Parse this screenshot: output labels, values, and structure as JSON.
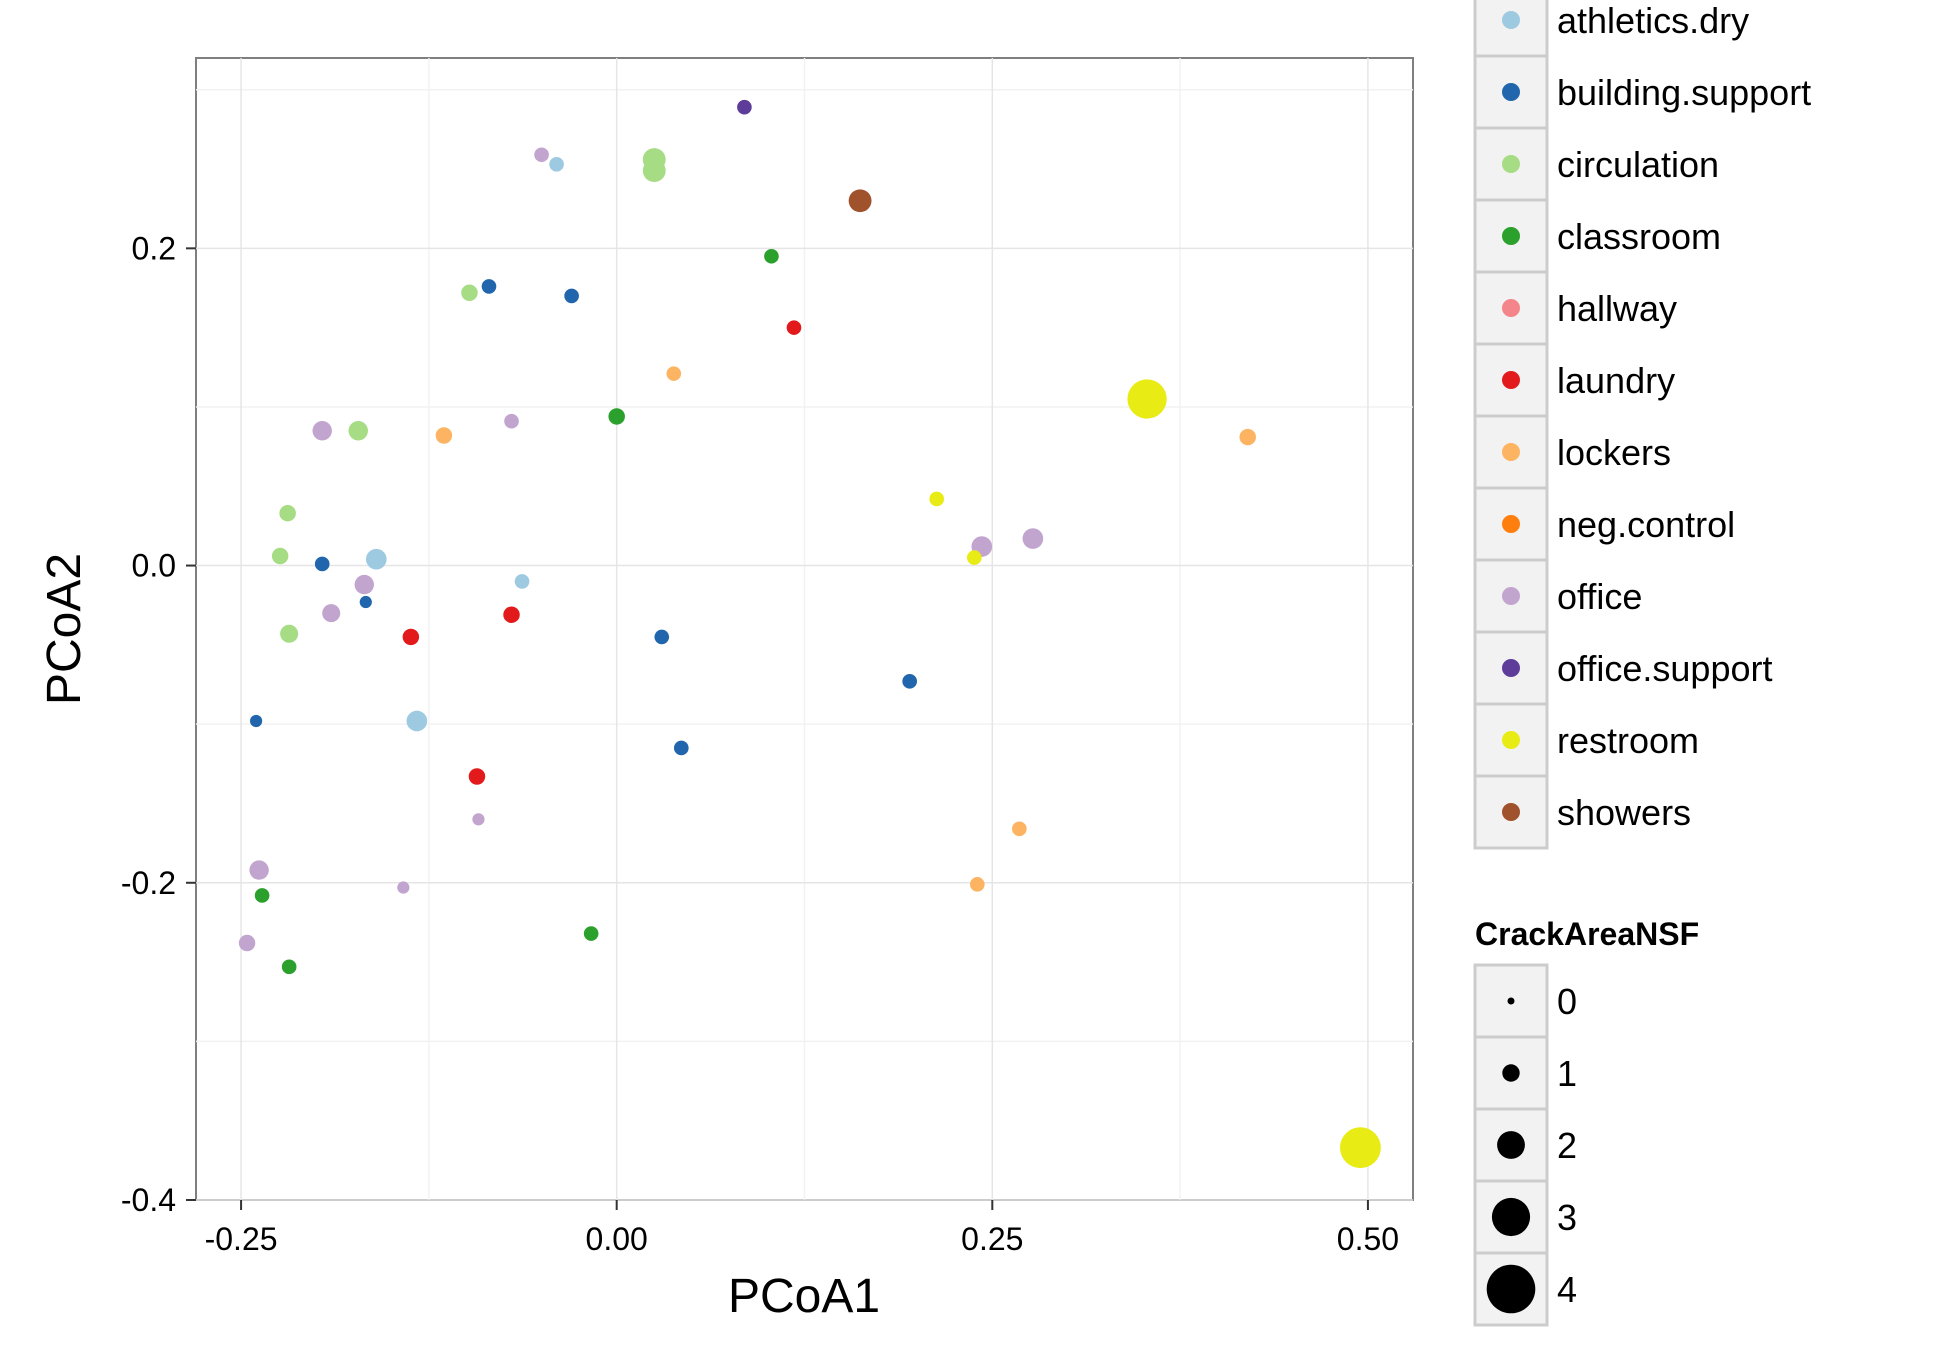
{
  "chart_data": {
    "type": "scatter",
    "title": "",
    "xlabel": "PCoA1",
    "ylabel": "PCoA2",
    "xlim": [
      -0.28,
      0.53
    ],
    "ylim": [
      -0.4,
      0.32
    ],
    "xticks": [
      {
        "value": -0.25,
        "label": "-0.25"
      },
      {
        "value": 0.0,
        "label": "0.00"
      },
      {
        "value": 0.25,
        "label": "0.25"
      },
      {
        "value": 0.5,
        "label": "0.50"
      }
    ],
    "yticks": [
      {
        "value": -0.4,
        "label": "-0.4"
      },
      {
        "value": -0.2,
        "label": "-0.2"
      },
      {
        "value": 0.0,
        "label": "0.0"
      },
      {
        "value": 0.2,
        "label": "0.2"
      }
    ],
    "grid": true,
    "legend_position": "right",
    "color_legend": {
      "title": "",
      "entries": [
        {
          "label": "athletics.dry",
          "color": "#9ecae1"
        },
        {
          "label": "building.support",
          "color": "#2166ac"
        },
        {
          "label": "circulation",
          "color": "#a6dc84"
        },
        {
          "label": "classroom",
          "color": "#2ca02c"
        },
        {
          "label": "hallway",
          "color": "#f4858a"
        },
        {
          "label": "laundry",
          "color": "#e31a1c"
        },
        {
          "label": "lockers",
          "color": "#fdb462"
        },
        {
          "label": "neg.control",
          "color": "#ff7f0e"
        },
        {
          "label": "office",
          "color": "#c2a5cf"
        },
        {
          "label": "office.support",
          "color": "#5e3c99"
        },
        {
          "label": "restroom",
          "color": "#e8eb14"
        },
        {
          "label": "showers",
          "color": "#a0522d"
        }
      ]
    },
    "size_legend": {
      "title": "CrackAreaNSF",
      "entries": [
        {
          "label": "0",
          "value": 0
        },
        {
          "label": "1",
          "value": 1
        },
        {
          "label": "2",
          "value": 2
        },
        {
          "label": "3",
          "value": 3
        },
        {
          "label": "4",
          "value": 4
        }
      ]
    },
    "points": [
      {
        "x": 0.085,
        "y": 0.289,
        "group": "office.support",
        "size": 0.2
      },
      {
        "x": -0.05,
        "y": 0.259,
        "group": "office",
        "size": 0.2
      },
      {
        "x": -0.04,
        "y": 0.253,
        "group": "athletics.dry",
        "size": 0.2
      },
      {
        "x": 0.025,
        "y": 0.256,
        "group": "circulation",
        "size": 0.8
      },
      {
        "x": 0.025,
        "y": 0.249,
        "group": "circulation",
        "size": 0.8
      },
      {
        "x": 0.162,
        "y": 0.23,
        "group": "showers",
        "size": 0.8
      },
      {
        "x": 0.103,
        "y": 0.195,
        "group": "classroom",
        "size": 0.2
      },
      {
        "x": -0.085,
        "y": 0.176,
        "group": "building.support",
        "size": 0.2
      },
      {
        "x": -0.098,
        "y": 0.172,
        "group": "circulation",
        "size": 0.3
      },
      {
        "x": -0.03,
        "y": 0.17,
        "group": "building.support",
        "size": 0.2
      },
      {
        "x": 0.118,
        "y": 0.15,
        "group": "laundry",
        "size": 0.2
      },
      {
        "x": 0.038,
        "y": 0.121,
        "group": "lockers",
        "size": 0.2
      },
      {
        "x": 0.353,
        "y": 0.105,
        "group": "restroom",
        "size": 3.2
      },
      {
        "x": 0.42,
        "y": 0.081,
        "group": "lockers",
        "size": 0.3
      },
      {
        "x": 0.0,
        "y": 0.094,
        "group": "classroom",
        "size": 0.3
      },
      {
        "x": -0.07,
        "y": 0.091,
        "group": "office",
        "size": 0.2
      },
      {
        "x": -0.196,
        "y": 0.085,
        "group": "office",
        "size": 0.5
      },
      {
        "x": -0.172,
        "y": 0.085,
        "group": "circulation",
        "size": 0.5
      },
      {
        "x": -0.115,
        "y": 0.082,
        "group": "lockers",
        "size": 0.3
      },
      {
        "x": 0.213,
        "y": 0.042,
        "group": "restroom",
        "size": 0.2
      },
      {
        "x": -0.219,
        "y": 0.033,
        "group": "circulation",
        "size": 0.3
      },
      {
        "x": 0.277,
        "y": 0.017,
        "group": "office",
        "size": 0.6
      },
      {
        "x": 0.243,
        "y": 0.012,
        "group": "office",
        "size": 0.6
      },
      {
        "x": 0.238,
        "y": 0.005,
        "group": "restroom",
        "size": 0.2
      },
      {
        "x": -0.224,
        "y": 0.006,
        "group": "circulation",
        "size": 0.3
      },
      {
        "x": -0.16,
        "y": 0.004,
        "group": "athletics.dry",
        "size": 0.6
      },
      {
        "x": -0.196,
        "y": 0.001,
        "group": "building.support",
        "size": 0.2
      },
      {
        "x": -0.063,
        "y": -0.01,
        "group": "athletics.dry",
        "size": 0.2
      },
      {
        "x": -0.168,
        "y": -0.012,
        "group": "office",
        "size": 0.5
      },
      {
        "x": -0.167,
        "y": -0.023,
        "group": "building.support",
        "size": 0.1
      },
      {
        "x": -0.19,
        "y": -0.03,
        "group": "office",
        "size": 0.4
      },
      {
        "x": -0.07,
        "y": -0.031,
        "group": "laundry",
        "size": 0.3
      },
      {
        "x": -0.218,
        "y": -0.043,
        "group": "circulation",
        "size": 0.4
      },
      {
        "x": -0.137,
        "y": -0.045,
        "group": "laundry",
        "size": 0.3
      },
      {
        "x": 0.03,
        "y": -0.045,
        "group": "building.support",
        "size": 0.2
      },
      {
        "x": 0.195,
        "y": -0.073,
        "group": "building.support",
        "size": 0.2
      },
      {
        "x": -0.24,
        "y": -0.098,
        "group": "building.support",
        "size": 0.1
      },
      {
        "x": -0.133,
        "y": -0.098,
        "group": "athletics.dry",
        "size": 0.6
      },
      {
        "x": 0.043,
        "y": -0.115,
        "group": "building.support",
        "size": 0.2
      },
      {
        "x": -0.093,
        "y": -0.133,
        "group": "laundry",
        "size": 0.3
      },
      {
        "x": -0.092,
        "y": -0.16,
        "group": "office",
        "size": 0.1
      },
      {
        "x": 0.268,
        "y": -0.166,
        "group": "lockers",
        "size": 0.2
      },
      {
        "x": -0.238,
        "y": -0.192,
        "group": "office",
        "size": 0.5
      },
      {
        "x": 0.24,
        "y": -0.201,
        "group": "lockers",
        "size": 0.2
      },
      {
        "x": -0.142,
        "y": -0.203,
        "group": "office",
        "size": 0.1
      },
      {
        "x": -0.236,
        "y": -0.208,
        "group": "classroom",
        "size": 0.2
      },
      {
        "x": -0.017,
        "y": -0.232,
        "group": "classroom",
        "size": 0.2
      },
      {
        "x": -0.246,
        "y": -0.238,
        "group": "office",
        "size": 0.3
      },
      {
        "x": -0.218,
        "y": -0.253,
        "group": "classroom",
        "size": 0.2
      },
      {
        "x": 0.495,
        "y": -0.367,
        "group": "restroom",
        "size": 3.5
      }
    ]
  }
}
